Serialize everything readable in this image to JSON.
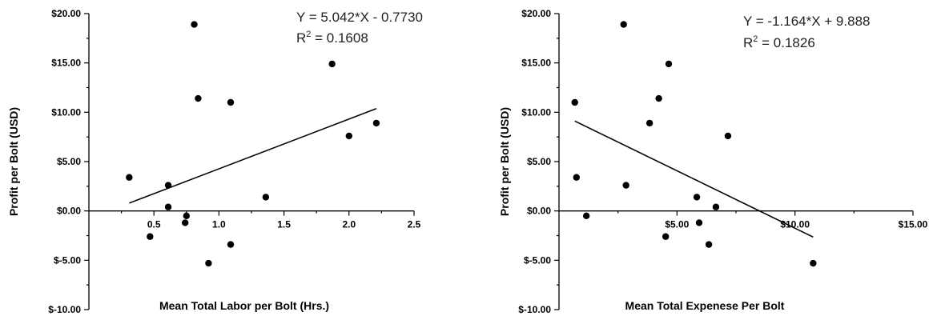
{
  "chart_data": [
    {
      "type": "scatter",
      "xlabel": "Mean Total Labor per Bolt (Hrs.)",
      "ylabel": "Profit per Bolt (USD)",
      "xlim": [
        0,
        2.5
      ],
      "ylim": [
        -10,
        20
      ],
      "x_ticks": [
        0.5,
        1.0,
        1.5,
        2.0,
        2.5
      ],
      "x_tick_labels": [
        "0.5",
        "1.0",
        "1.5",
        "2.0",
        "2.5"
      ],
      "y_ticks": [
        -10,
        -5,
        0,
        5,
        10,
        15,
        20
      ],
      "y_tick_labels": [
        "$-10.00",
        "$-5.00",
        "$0.00",
        "$5.00",
        "$10.00",
        "$15.00",
        "$20.00"
      ],
      "grid": false,
      "points": [
        {
          "x": 0.31,
          "y": 3.4
        },
        {
          "x": 0.47,
          "y": -2.6
        },
        {
          "x": 0.61,
          "y": 2.6
        },
        {
          "x": 0.61,
          "y": 0.4
        },
        {
          "x": 0.74,
          "y": -1.2
        },
        {
          "x": 0.75,
          "y": -0.5
        },
        {
          "x": 0.81,
          "y": 18.9
        },
        {
          "x": 0.84,
          "y": 11.4
        },
        {
          "x": 0.92,
          "y": -5.3
        },
        {
          "x": 1.09,
          "y": 11.0
        },
        {
          "x": 1.09,
          "y": -3.4
        },
        {
          "x": 1.36,
          "y": 1.4
        },
        {
          "x": 1.87,
          "y": 14.9
        },
        {
          "x": 2.0,
          "y": 7.6
        },
        {
          "x": 2.21,
          "y": 8.9
        }
      ],
      "fit_line": {
        "slope": 5.042,
        "intercept": -0.773,
        "x_range": [
          0.31,
          2.21
        ]
      },
      "annotation": {
        "equation": "Y = 5.042*X - 0.7730",
        "r2_prefix": "R",
        "r2_exp": "2",
        "r2_value": " = 0.1608"
      }
    },
    {
      "type": "scatter",
      "xlabel": "Mean Total Expenese Per Bolt",
      "ylabel": "Profit per Bolt (USD)",
      "xlim": [
        0,
        15
      ],
      "ylim": [
        -10,
        20
      ],
      "x_ticks": [
        5,
        10,
        15
      ],
      "x_tick_labels": [
        "$5.00",
        "$10.00",
        "$15.00"
      ],
      "y_ticks": [
        -10,
        -5,
        0,
        5,
        10,
        15,
        20
      ],
      "y_tick_labels": [
        "$-10.00",
        "$-5.00",
        "$0.00",
        "$5.00",
        "$10.00",
        "$15.00",
        "$20.00"
      ],
      "grid": false,
      "points": [
        {
          "x": 0.67,
          "y": 11.0
        },
        {
          "x": 0.74,
          "y": 3.4
        },
        {
          "x": 1.16,
          "y": -0.5
        },
        {
          "x": 2.74,
          "y": 18.9
        },
        {
          "x": 2.84,
          "y": 2.6
        },
        {
          "x": 3.84,
          "y": 8.9
        },
        {
          "x": 4.23,
          "y": 11.4
        },
        {
          "x": 4.52,
          "y": -2.6
        },
        {
          "x": 4.65,
          "y": 14.9
        },
        {
          "x": 5.84,
          "y": 1.4
        },
        {
          "x": 5.94,
          "y": -1.2
        },
        {
          "x": 6.35,
          "y": -3.4
        },
        {
          "x": 6.65,
          "y": 0.4
        },
        {
          "x": 7.16,
          "y": 7.6
        },
        {
          "x": 10.77,
          "y": -5.3
        }
      ],
      "fit_line": {
        "slope": -1.164,
        "intercept": 9.888,
        "x_range": [
          0.67,
          10.77
        ]
      },
      "annotation": {
        "equation": "Y = -1.164*X + 9.888",
        "r2_prefix": "R",
        "r2_exp": "2",
        "r2_value": " = 0.1826"
      }
    }
  ]
}
